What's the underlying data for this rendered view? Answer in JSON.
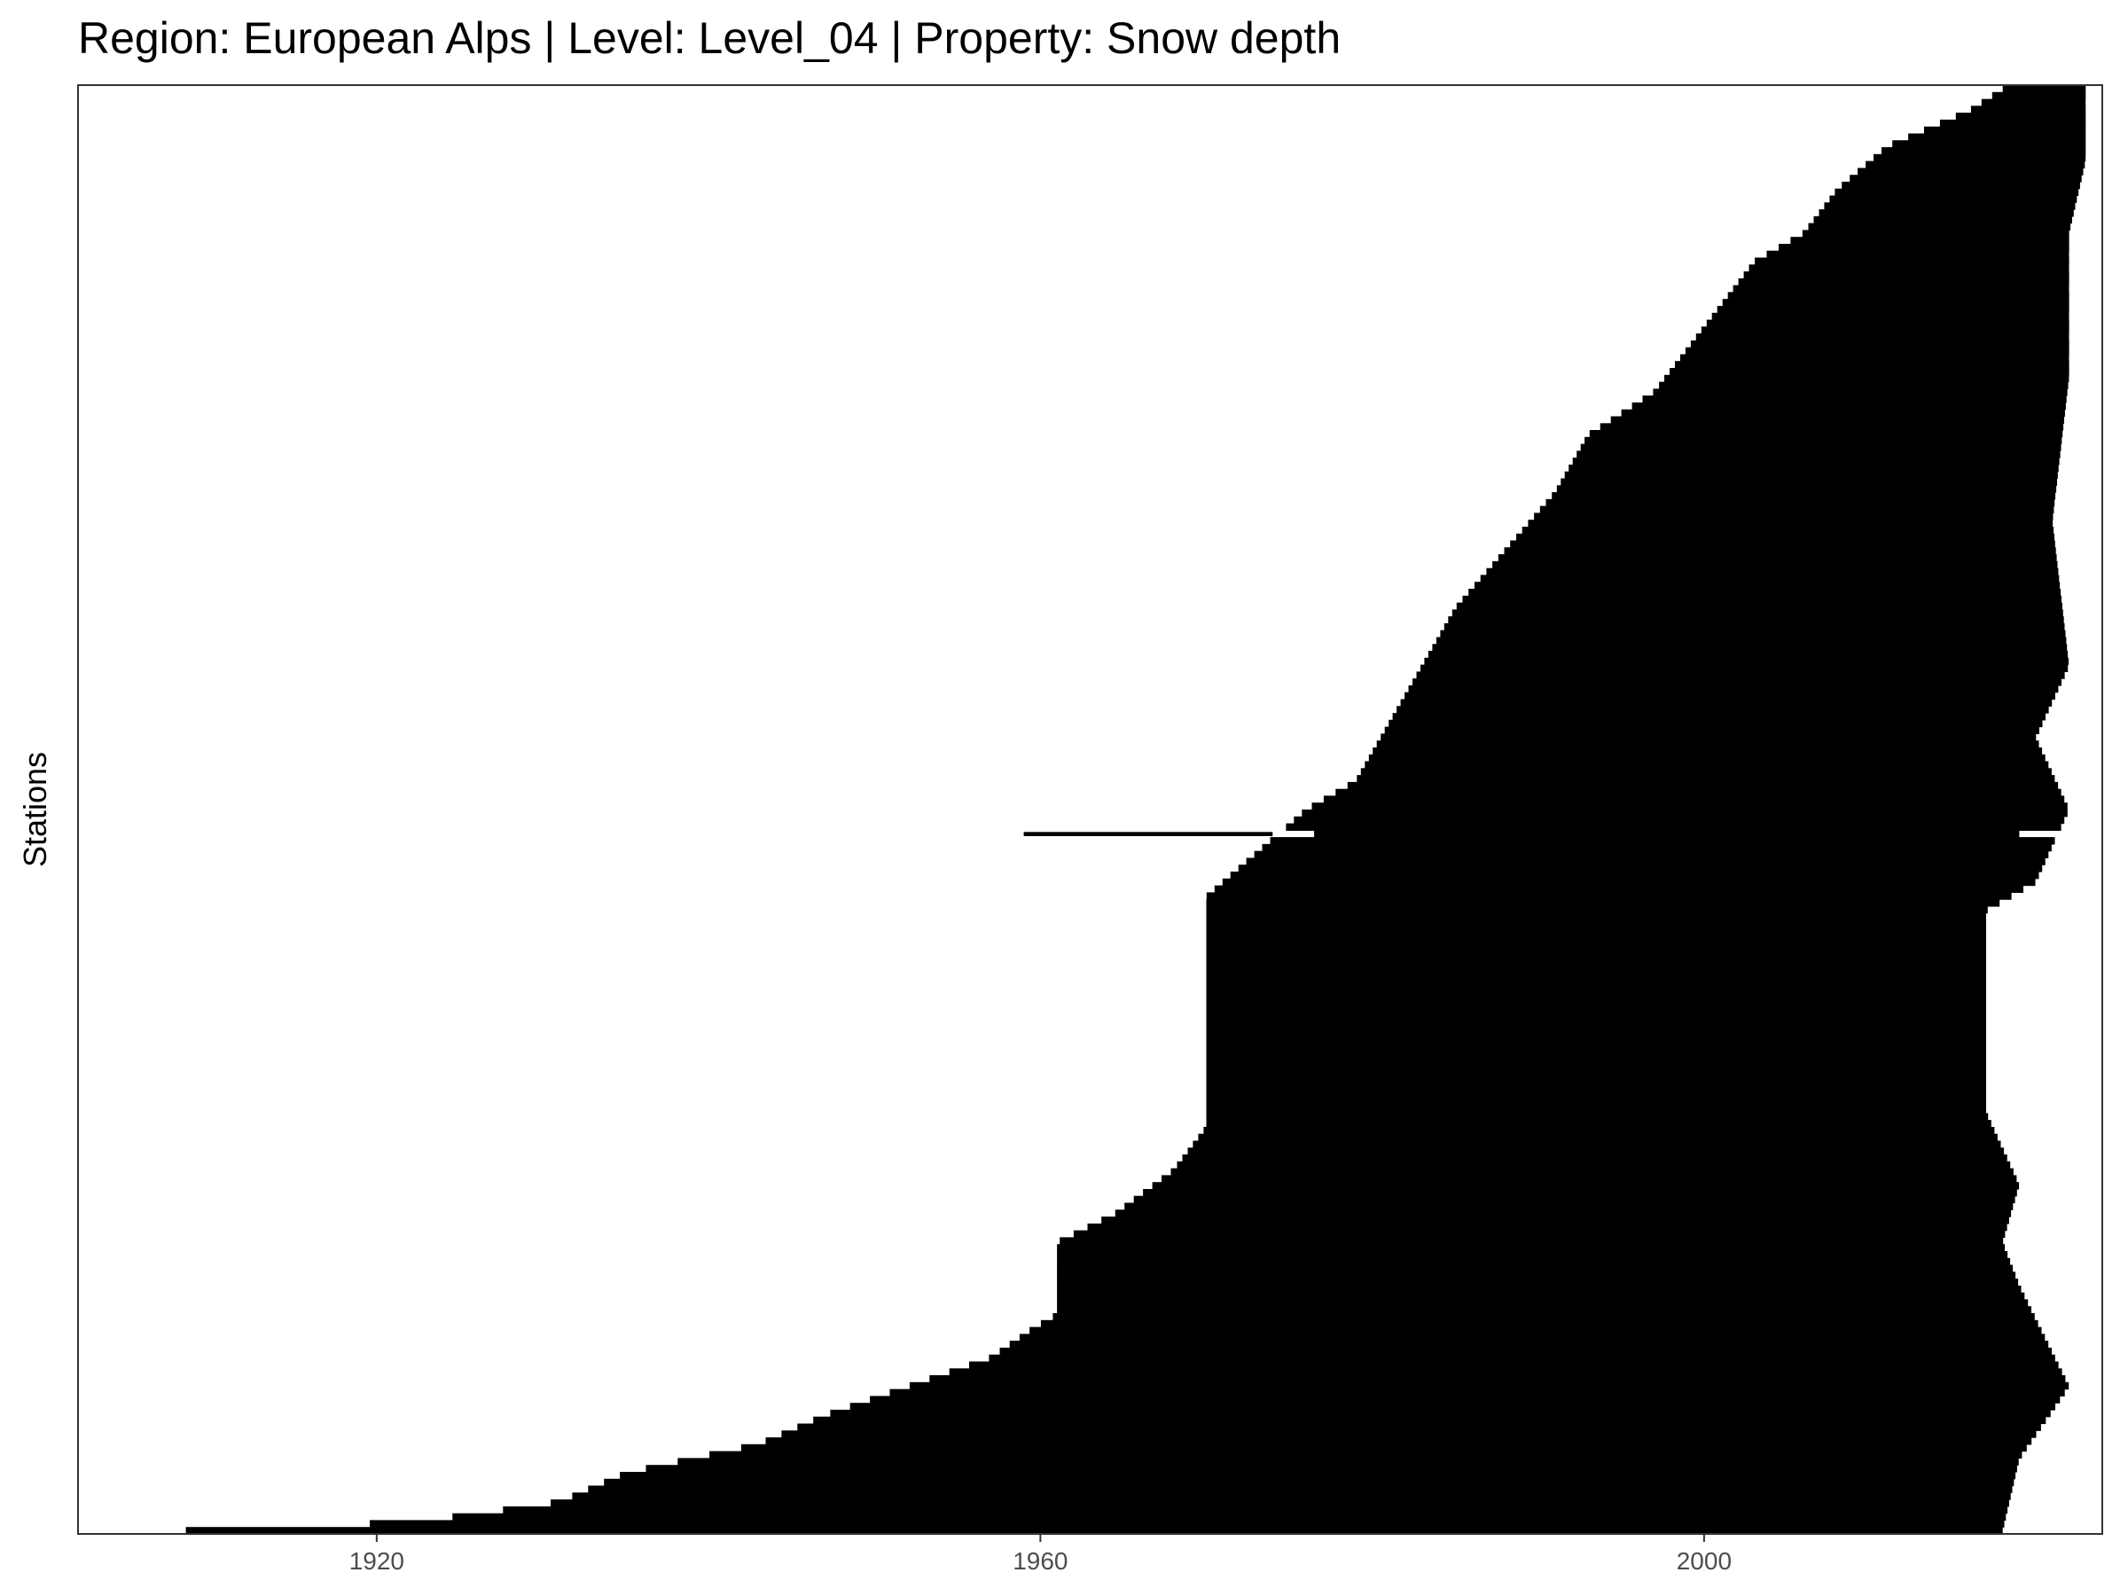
{
  "chart_data": {
    "type": "bar",
    "orientation": "horizontal",
    "chart_kind": "station record availability (coverage ranges per station)",
    "title": "Region: European Alps | Level: Level_04 | Property: Snow depth",
    "xlabel": "",
    "ylabel": "Stations",
    "xlim": [
      1902,
      2024
    ],
    "x_ticks": [
      1920,
      1960,
      2000
    ],
    "y_ticks_shown": false,
    "grid": false,
    "legend": "none",
    "bar_color": "#000000",
    "station_count_estimate": 210,
    "start_year_profile": [
      [
        0.0,
        1908.5
      ],
      [
        0.002,
        1914.2
      ],
      [
        0.005,
        1920.0
      ],
      [
        0.01,
        1925.0
      ],
      [
        0.02,
        1931.0
      ],
      [
        0.04,
        1935.0
      ],
      [
        0.06,
        1943.0
      ],
      [
        0.08,
        1947.0
      ],
      [
        0.1,
        1952.0
      ],
      [
        0.12,
        1957.0
      ],
      [
        0.14,
        1959.5
      ],
      [
        0.15,
        1961.0
      ],
      [
        0.2,
        1961.0
      ],
      [
        0.22,
        1964.5
      ],
      [
        0.25,
        1968.0
      ],
      [
        0.28,
        1970.0
      ],
      [
        0.3,
        1970.0
      ],
      [
        0.4,
        1970.0
      ],
      [
        0.44,
        1970.0
      ],
      [
        0.46,
        1972.0
      ],
      [
        0.48,
        1974.0
      ],
      [
        0.5,
        1976.0
      ],
      [
        0.52,
        1979.0
      ],
      [
        0.56,
        1981.0
      ],
      [
        0.6,
        1983.0
      ],
      [
        0.64,
        1985.0
      ],
      [
        0.68,
        1988.0
      ],
      [
        0.72,
        1991.0
      ],
      [
        0.76,
        1993.0
      ],
      [
        0.79,
        1997.0
      ],
      [
        0.82,
        1999.0
      ],
      [
        0.85,
        2001.0
      ],
      [
        0.88,
        2003.0
      ],
      [
        0.9,
        2006.0
      ],
      [
        0.93,
        2008.0
      ],
      [
        0.96,
        2011.0
      ],
      [
        0.985,
        2016.0
      ],
      [
        1.0,
        2018.0
      ]
    ],
    "end_year_profile": [
      [
        0.0,
        2018.0
      ],
      [
        0.05,
        2019.0
      ],
      [
        0.1,
        2022.0
      ],
      [
        0.17,
        2019.0
      ],
      [
        0.2,
        2018.0
      ],
      [
        0.24,
        2019.0
      ],
      [
        0.29,
        2017.0
      ],
      [
        0.43,
        2017.0
      ],
      [
        0.45,
        2020.0
      ],
      [
        0.5,
        2022.0
      ],
      [
        0.55,
        2020.0
      ],
      [
        0.6,
        2022.0
      ],
      [
        0.7,
        2021.0
      ],
      [
        0.8,
        2022.0
      ],
      [
        0.9,
        2022.0
      ],
      [
        0.95,
        2023.0
      ],
      [
        1.0,
        2023.0
      ]
    ],
    "notable_station": {
      "start": 1959,
      "end": 2019,
      "gap_start": 1974,
      "gap_end": 1976.5
    }
  }
}
